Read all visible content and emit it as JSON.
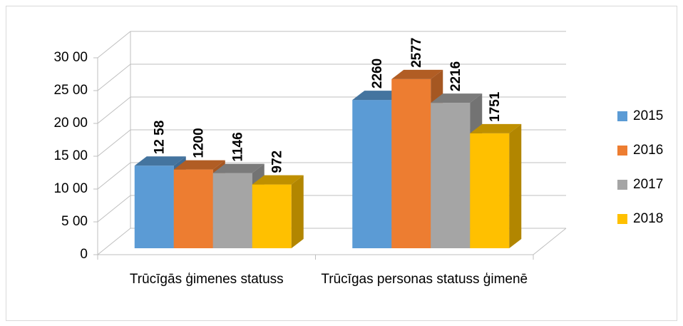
{
  "chart_data": {
    "type": "bar3d",
    "categories": [
      "Trūcīgās ģimenes statuss",
      "Trūcīgas personas statuss ģimenē"
    ],
    "series": [
      {
        "name": "2015",
        "color": "#5b9bd5",
        "values": [
          1258,
          2260
        ],
        "value_labels": [
          "12 58",
          "2260"
        ]
      },
      {
        "name": "2016",
        "color": "#ed7d31",
        "values": [
          1200,
          2577
        ]
      },
      {
        "name": "2017",
        "color": "#a5a5a5",
        "values": [
          1146,
          2216
        ]
      },
      {
        "name": "2018",
        "color": "#ffc000",
        "values": [
          972,
          1751
        ]
      }
    ],
    "ylim": [
      0,
      3000
    ],
    "yticks": [
      0,
      {
        "value": 500,
        "label": "5 00"
      },
      {
        "value": 1000,
        "label": "10 00"
      },
      {
        "value": 1500,
        "label": "15 00"
      },
      {
        "value": 2000,
        "label": "20 00"
      },
      {
        "value": 2500,
        "label": "25 00"
      },
      {
        "value": 3000,
        "label": "30 00"
      }
    ],
    "grid": true,
    "legend": "right"
  }
}
